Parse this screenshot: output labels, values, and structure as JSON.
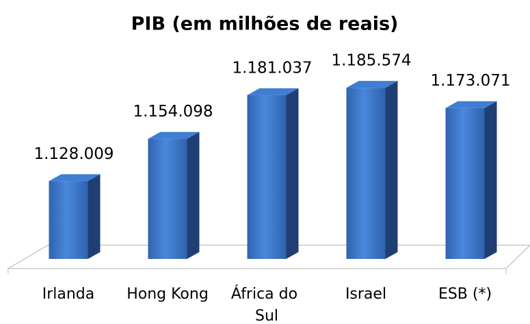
{
  "chart_data": {
    "type": "bar",
    "title": "PIB (em milhões de reais)",
    "categories": [
      "Irlanda",
      "Hong Kong",
      "África do Sul",
      "Israel",
      "ESB (*)"
    ],
    "values": [
      1128009,
      1154098,
      1181037,
      1185574,
      1173071
    ],
    "value_labels": [
      "1.128.009",
      "1.154.098",
      "1.181.037",
      "1.185.574",
      "1.173.071"
    ],
    "color": "#3a77cc",
    "ylim": [
      1080000,
      1200000
    ]
  }
}
